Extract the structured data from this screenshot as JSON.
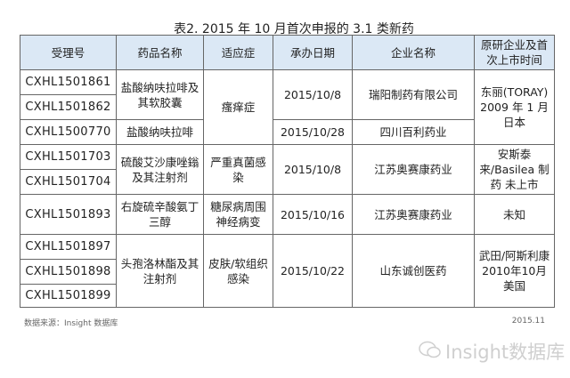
{
  "title": "表2. 2015 年 10 月首次申报的 3.1 类新药",
  "headers": [
    "受理号",
    "药品名称",
    "适应症",
    "承办日期",
    "企业名称",
    "原研企业及首次上市时间"
  ],
  "ids": [
    "CXHL1501861",
    "CXHL1501862",
    "CXHL1500770",
    "CXHL1501703",
    "CXHL1501704",
    "CXHL1501893",
    "CXHL1501897",
    "CXHL1501898",
    "CXHL1501899"
  ],
  "drugs": [
    "盐酸纳呋拉啡及其软胶囊",
    "盐酸纳呋拉啡",
    "硫酸艾沙康唑鎓及其注射剂",
    "右旋硫辛酸氨丁三醇",
    "头孢洛林酯及其注射剂"
  ],
  "indications": [
    "瘙痒症",
    "严重真菌感染",
    "糖尿病周围神经病变",
    "皮肤/软组织感染"
  ],
  "dates": [
    "2015/10/8",
    "2015/10/28",
    "2015/10/8",
    "2015/10/16",
    "2015/10/22"
  ],
  "companies": [
    "瑞阳制药有限公司",
    "四川百利药业",
    "江苏奥赛康药业",
    "江苏奥赛康药业",
    "山东诚创医药"
  ],
  "originators": [
    "东丽(TORAY) 2009 年 1 月 日本",
    "安斯泰来/Basilea 制药 未上市",
    "未知",
    "武田/阿斯利康 2010年10月 美国"
  ],
  "footer": {
    "source": "数据来源：Insight 数据库",
    "date": "2015.11"
  },
  "watermark": "Insight数据库"
}
